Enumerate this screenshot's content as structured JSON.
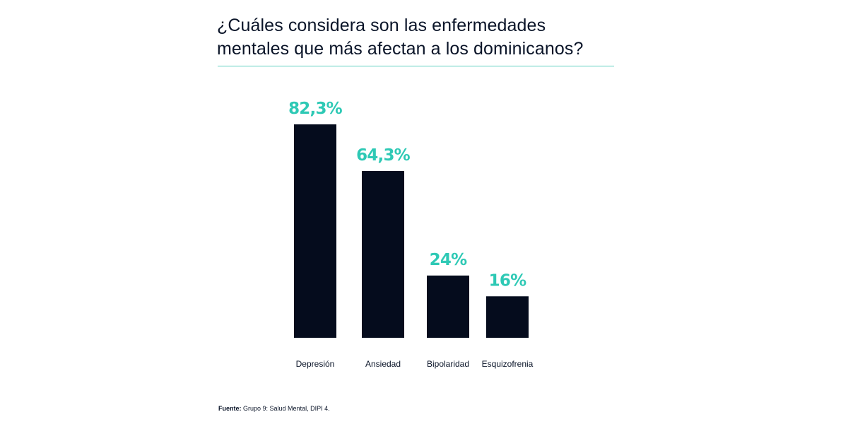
{
  "title_lines": [
    "¿Cuáles considera son las enfermedades",
    "mentales que más afectan a los dominicanos?"
  ],
  "source": {
    "label": "Fuente:",
    "text": "Grupo 9: Salud Mental, DIPI 4."
  },
  "colors": {
    "bar": "#050c1d",
    "value_label": "#2ec9b5",
    "rule": "#5fcfc0",
    "text": "#0a1428"
  },
  "chart_data": {
    "type": "bar",
    "title": "¿Cuáles considera son las enfermedades mentales que más afectan a los dominicanos?",
    "categories": [
      "Depresión",
      "Ansiedad",
      "Bipolaridad",
      "Esquizofrenia"
    ],
    "values": [
      82.3,
      64.3,
      24,
      16
    ],
    "value_labels": [
      "82,3%",
      "64,3%",
      "24%",
      "16%"
    ],
    "xlabel": "",
    "ylabel": "",
    "ylim": [
      0,
      100
    ],
    "grid": false,
    "legend": "none"
  }
}
